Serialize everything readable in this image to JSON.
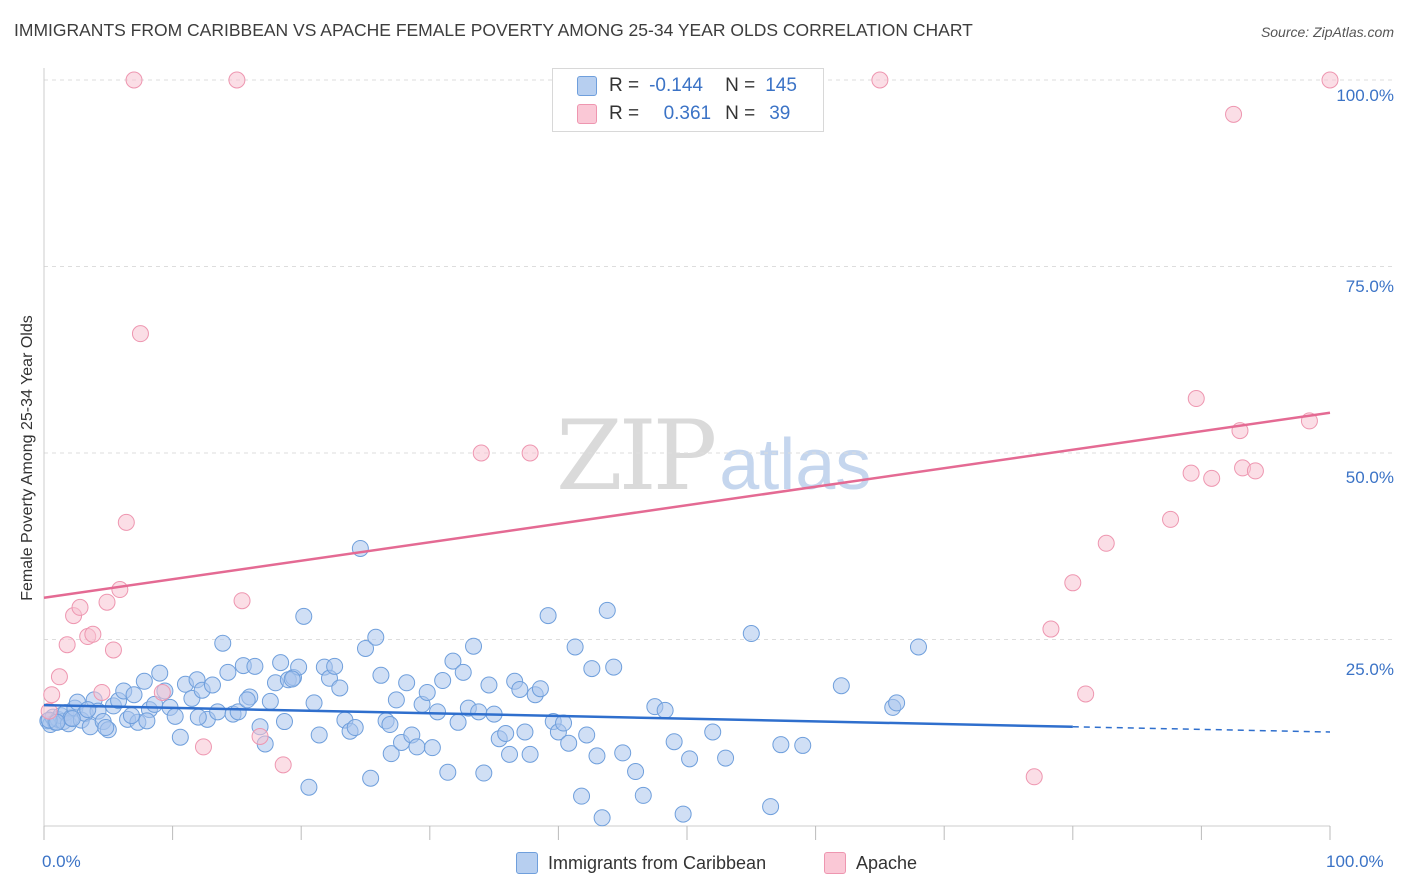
{
  "header": {
    "title": "IMMIGRANTS FROM CARIBBEAN VS APACHE FEMALE POVERTY AMONG 25-34 YEAR OLDS CORRELATION CHART",
    "source": "Source: ZipAtlas.com"
  },
  "watermark": {
    "zip": "ZIP",
    "atlas": "atlas"
  },
  "legend": {
    "r_label": "R =",
    "n_label": "N =",
    "blue": {
      "r": "-0.144",
      "n": "145",
      "color": "#a9c5ec"
    },
    "pink": {
      "r": "0.361",
      "n": "39",
      "color": "#f7b8c9"
    }
  },
  "bottom_legend": {
    "blue": "Immigrants from Caribbean",
    "pink": "Apache"
  },
  "colors": {
    "blue_fill": "#a9c5ec",
    "blue_stroke": "#6f9fdc",
    "blue_line": "#2f6fcd",
    "pink_fill": "#f7c3d1",
    "pink_stroke": "#ee96b0",
    "pink_line": "#e46a93",
    "grid": "#dddddd",
    "tick_label": "#3b73c6"
  },
  "chart_data": {
    "type": "scatter",
    "title": "IMMIGRANTS FROM CARIBBEAN VS APACHE FEMALE POVERTY AMONG 25-34 YEAR OLDS CORRELATION CHART",
    "xlabel": "",
    "ylabel": "Female Poverty Among 25-34 Year Olds",
    "xlim": [
      0,
      100
    ],
    "ylim": [
      0,
      100
    ],
    "x_tick_labels": [
      "0.0%",
      "100.0%"
    ],
    "y_tick_labels": [
      "25.0%",
      "50.0%",
      "75.0%",
      "100.0%"
    ],
    "y_ticks": [
      25,
      50,
      75,
      100
    ],
    "grid": true,
    "legend_position": "top-center",
    "series": [
      {
        "name": "Immigrants from Caribbean",
        "r": -0.144,
        "n": 145,
        "trend": {
          "x": [
            0,
            80
          ],
          "y": [
            16.2,
            13.3
          ],
          "dashed_to": [
            100,
            12.6
          ]
        },
        "points": [
          [
            0.3,
            14.1
          ],
          [
            0.5,
            13.6
          ],
          [
            0.7,
            14.6
          ],
          [
            0.9,
            13.9
          ],
          [
            1.1,
            14.3
          ],
          [
            1.3,
            14.8
          ],
          [
            1.5,
            14.0
          ],
          [
            1.7,
            15.2
          ],
          [
            1.9,
            13.7
          ],
          [
            2.1,
            14.5
          ],
          [
            2.4,
            15.8
          ],
          [
            2.6,
            16.6
          ],
          [
            2.9,
            14.2
          ],
          [
            3.2,
            15.1
          ],
          [
            3.6,
            13.3
          ],
          [
            3.9,
            16.9
          ],
          [
            4.2,
            15.4
          ],
          [
            4.6,
            14.0
          ],
          [
            5.0,
            12.9
          ],
          [
            5.4,
            16.1
          ],
          [
            5.8,
            16.8
          ],
          [
            6.2,
            18.1
          ],
          [
            6.5,
            14.3
          ],
          [
            7.0,
            17.6
          ],
          [
            7.3,
            13.9
          ],
          [
            7.8,
            19.4
          ],
          [
            8.2,
            15.6
          ],
          [
            8.6,
            16.3
          ],
          [
            9.0,
            20.5
          ],
          [
            9.4,
            18.1
          ],
          [
            9.8,
            15.9
          ],
          [
            10.2,
            14.7
          ],
          [
            10.6,
            11.9
          ],
          [
            11.0,
            19.0
          ],
          [
            11.5,
            17.1
          ],
          [
            11.9,
            19.6
          ],
          [
            12.3,
            18.2
          ],
          [
            12.7,
            14.3
          ],
          [
            13.1,
            18.9
          ],
          [
            13.5,
            15.3
          ],
          [
            13.9,
            24.5
          ],
          [
            14.3,
            20.6
          ],
          [
            14.7,
            15.0
          ],
          [
            15.1,
            15.3
          ],
          [
            15.5,
            21.5
          ],
          [
            16.0,
            17.3
          ],
          [
            16.4,
            21.4
          ],
          [
            16.8,
            13.3
          ],
          [
            17.2,
            11.0
          ],
          [
            17.6,
            16.7
          ],
          [
            18.0,
            19.2
          ],
          [
            18.4,
            21.9
          ],
          [
            18.7,
            14.0
          ],
          [
            19.0,
            19.6
          ],
          [
            19.4,
            19.9
          ],
          [
            19.8,
            21.3
          ],
          [
            20.2,
            28.1
          ],
          [
            20.6,
            5.2
          ],
          [
            21.0,
            16.5
          ],
          [
            21.4,
            12.2
          ],
          [
            21.8,
            21.3
          ],
          [
            22.2,
            19.8
          ],
          [
            22.6,
            21.4
          ],
          [
            23.0,
            18.5
          ],
          [
            23.4,
            14.2
          ],
          [
            23.8,
            12.7
          ],
          [
            24.2,
            13.2
          ],
          [
            24.6,
            37.2
          ],
          [
            25.0,
            23.8
          ],
          [
            25.4,
            6.4
          ],
          [
            25.8,
            25.3
          ],
          [
            26.2,
            20.2
          ],
          [
            26.6,
            14.1
          ],
          [
            27.0,
            9.7
          ],
          [
            27.4,
            16.9
          ],
          [
            27.8,
            11.2
          ],
          [
            28.2,
            19.2
          ],
          [
            28.6,
            12.2
          ],
          [
            29.0,
            10.6
          ],
          [
            29.4,
            16.3
          ],
          [
            29.8,
            17.9
          ],
          [
            30.2,
            10.5
          ],
          [
            30.6,
            15.3
          ],
          [
            31.0,
            19.5
          ],
          [
            31.4,
            7.2
          ],
          [
            31.8,
            22.1
          ],
          [
            32.2,
            13.9
          ],
          [
            32.6,
            20.6
          ],
          [
            33.0,
            15.8
          ],
          [
            33.4,
            24.1
          ],
          [
            33.8,
            15.3
          ],
          [
            34.2,
            7.1
          ],
          [
            34.6,
            18.9
          ],
          [
            35.0,
            15.0
          ],
          [
            35.4,
            11.7
          ],
          [
            35.9,
            12.4
          ],
          [
            36.2,
            9.6
          ],
          [
            36.6,
            19.4
          ],
          [
            37.0,
            18.3
          ],
          [
            37.4,
            12.6
          ],
          [
            37.8,
            9.6
          ],
          [
            38.2,
            17.6
          ],
          [
            38.6,
            18.4
          ],
          [
            39.2,
            28.2
          ],
          [
            39.6,
            14.0
          ],
          [
            40.0,
            12.6
          ],
          [
            40.4,
            13.8
          ],
          [
            40.8,
            11.1
          ],
          [
            41.3,
            24.0
          ],
          [
            41.8,
            4.0
          ],
          [
            42.2,
            12.2
          ],
          [
            42.6,
            21.1
          ],
          [
            43.0,
            9.4
          ],
          [
            43.4,
            1.1
          ],
          [
            43.8,
            28.9
          ],
          [
            44.3,
            21.3
          ],
          [
            45.0,
            9.8
          ],
          [
            46.0,
            7.3
          ],
          [
            46.6,
            4.1
          ],
          [
            47.5,
            16.0
          ],
          [
            48.3,
            15.5
          ],
          [
            49.0,
            11.3
          ],
          [
            49.7,
            1.6
          ],
          [
            50.2,
            9.0
          ],
          [
            52.0,
            12.6
          ],
          [
            53.0,
            9.1
          ],
          [
            55.0,
            25.8
          ],
          [
            56.5,
            2.6
          ],
          [
            57.3,
            10.9
          ],
          [
            59.0,
            10.8
          ],
          [
            62.0,
            18.8
          ],
          [
            66.0,
            15.9
          ],
          [
            66.3,
            16.5
          ],
          [
            68.0,
            24.0
          ],
          [
            0.4,
            14.2
          ],
          [
            1.0,
            13.9
          ],
          [
            2.2,
            14.4
          ],
          [
            3.4,
            15.6
          ],
          [
            4.8,
            13.2
          ],
          [
            6.8,
            14.8
          ],
          [
            8.0,
            14.1
          ],
          [
            12.0,
            14.6
          ],
          [
            15.8,
            16.9
          ],
          [
            19.3,
            19.7
          ],
          [
            26.9,
            13.6
          ]
        ]
      },
      {
        "name": "Apache",
        "r": 0.361,
        "n": 39,
        "trend": {
          "x": [
            0,
            100
          ],
          "y": [
            30.6,
            55.4
          ]
        },
        "points": [
          [
            0.4,
            15.4
          ],
          [
            0.6,
            17.6
          ],
          [
            1.2,
            20.0
          ],
          [
            1.8,
            24.3
          ],
          [
            2.3,
            28.2
          ],
          [
            2.8,
            29.3
          ],
          [
            3.4,
            25.4
          ],
          [
            3.8,
            25.7
          ],
          [
            4.5,
            17.9
          ],
          [
            4.9,
            30.0
          ],
          [
            5.4,
            23.6
          ],
          [
            5.9,
            31.7
          ],
          [
            6.4,
            40.7
          ],
          [
            7.0,
            100.0
          ],
          [
            7.5,
            66.0
          ],
          [
            9.2,
            17.9
          ],
          [
            12.4,
            10.6
          ],
          [
            15.0,
            100.0
          ],
          [
            15.4,
            30.2
          ],
          [
            16.8,
            12.0
          ],
          [
            18.6,
            8.2
          ],
          [
            34.0,
            50.0
          ],
          [
            37.8,
            50.0
          ],
          [
            65.0,
            100.0
          ],
          [
            78.3,
            26.4
          ],
          [
            80.0,
            32.6
          ],
          [
            81.0,
            17.7
          ],
          [
            82.6,
            37.9
          ],
          [
            77.0,
            6.6
          ],
          [
            87.6,
            41.1
          ],
          [
            89.2,
            47.3
          ],
          [
            89.6,
            57.3
          ],
          [
            90.8,
            46.6
          ],
          [
            92.5,
            95.4
          ],
          [
            93.0,
            53.0
          ],
          [
            93.2,
            48.0
          ],
          [
            94.2,
            47.6
          ],
          [
            98.4,
            54.3
          ],
          [
            100.0,
            100.0
          ]
        ]
      }
    ]
  }
}
